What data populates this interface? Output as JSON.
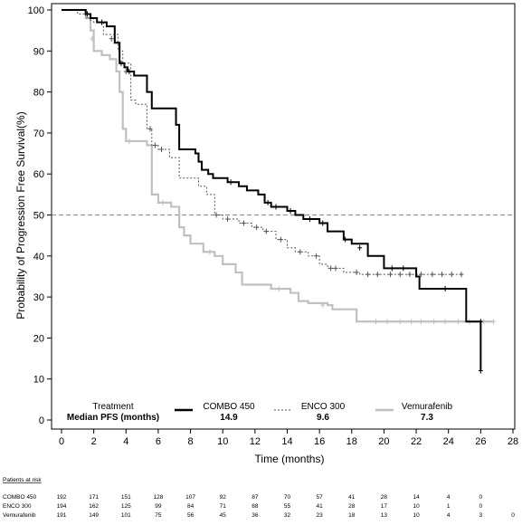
{
  "chart_data": {
    "type": "line",
    "ylabel": "Probability of Progression Free Survival(%)",
    "xlabel": "Time (months)",
    "xlim": [
      0,
      28
    ],
    "ylim": [
      0,
      100
    ],
    "x_ticks": [
      "0",
      "2",
      "4",
      "6",
      "8",
      "10",
      "12",
      "14",
      "16",
      "18",
      "20",
      "22",
      "24",
      "26",
      "28"
    ],
    "y_ticks": [
      "0",
      "10",
      "20",
      "30",
      "40",
      "50",
      "60",
      "70",
      "80",
      "90",
      "100"
    ],
    "reference_line": {
      "y": 50,
      "style": "dashed"
    },
    "legend": {
      "title": "Treatment",
      "subtitle": "Median PFS (months)",
      "entries": [
        {
          "name": "COMBO 450",
          "median": "14.9",
          "color": "#000000",
          "style": "solid-thick"
        },
        {
          "name": "ENCO 300",
          "median": "9.6",
          "color": "#555555",
          "style": "dotted"
        },
        {
          "name": "Vemurafenib",
          "median": "7.3",
          "color": "#c0c0c0",
          "style": "solid-thick"
        }
      ]
    },
    "series": [
      {
        "name": "COMBO 450",
        "color": "#000000",
        "points": [
          [
            0,
            100
          ],
          [
            1.5,
            99
          ],
          [
            1.8,
            98
          ],
          [
            2.2,
            97
          ],
          [
            2.8,
            96
          ],
          [
            3.3,
            92
          ],
          [
            3.6,
            87
          ],
          [
            3.9,
            86
          ],
          [
            4.1,
            85
          ],
          [
            4.5,
            84
          ],
          [
            5.3,
            80
          ],
          [
            5.6,
            76
          ],
          [
            6.8,
            76
          ],
          [
            7.1,
            72
          ],
          [
            7.3,
            66
          ],
          [
            8.3,
            65
          ],
          [
            8.5,
            63
          ],
          [
            8.7,
            61
          ],
          [
            9.1,
            60
          ],
          [
            9.4,
            59
          ],
          [
            10.3,
            58
          ],
          [
            11.0,
            57
          ],
          [
            11.5,
            56
          ],
          [
            12.2,
            55
          ],
          [
            12.6,
            53
          ],
          [
            13.0,
            52
          ],
          [
            14.0,
            51
          ],
          [
            14.5,
            50
          ],
          [
            15.0,
            49
          ],
          [
            16.0,
            48
          ],
          [
            16.5,
            46
          ],
          [
            17.5,
            44
          ],
          [
            18.0,
            43
          ],
          [
            19.0,
            40
          ],
          [
            20.0,
            37
          ],
          [
            21.5,
            37
          ],
          [
            22.0,
            35
          ],
          [
            22.2,
            32
          ],
          [
            23.5,
            32
          ],
          [
            25.0,
            32
          ],
          [
            25.1,
            24
          ],
          [
            26.0,
            24
          ],
          [
            26.0,
            12
          ]
        ],
        "censor_marks": [
          [
            1.6,
            99
          ],
          [
            2.5,
            97
          ],
          [
            3.7,
            87
          ],
          [
            4.2,
            85
          ],
          [
            10.5,
            58
          ],
          [
            12.8,
            53
          ],
          [
            13.3,
            52
          ],
          [
            14.2,
            51
          ],
          [
            15.4,
            49
          ],
          [
            16.2,
            48
          ],
          [
            17.6,
            44
          ],
          [
            18.5,
            42
          ],
          [
            20.5,
            37
          ],
          [
            21.2,
            37
          ],
          [
            23.8,
            32
          ],
          [
            26.0,
            24
          ],
          [
            26.0,
            12
          ]
        ]
      },
      {
        "name": "ENCO 300",
        "color": "#555555",
        "points": [
          [
            0,
            100
          ],
          [
            1.0,
            99
          ],
          [
            1.5,
            98
          ],
          [
            2.0,
            97
          ],
          [
            2.6,
            94
          ],
          [
            3.5,
            90
          ],
          [
            3.8,
            87
          ],
          [
            4.3,
            78
          ],
          [
            4.6,
            77
          ],
          [
            5.3,
            71
          ],
          [
            5.6,
            67
          ],
          [
            6.0,
            66
          ],
          [
            6.7,
            64
          ],
          [
            7.3,
            59
          ],
          [
            8.5,
            57
          ],
          [
            9.0,
            55
          ],
          [
            9.5,
            50
          ],
          [
            10.0,
            49
          ],
          [
            11.0,
            48
          ],
          [
            11.8,
            47
          ],
          [
            12.5,
            46
          ],
          [
            13.3,
            44
          ],
          [
            14.0,
            42
          ],
          [
            14.5,
            41
          ],
          [
            15.3,
            40
          ],
          [
            16.0,
            38
          ],
          [
            16.5,
            37
          ],
          [
            17.5,
            36
          ],
          [
            18.5,
            35.5
          ],
          [
            20.0,
            35.5
          ],
          [
            22.0,
            35.5
          ],
          [
            24.0,
            35.5
          ],
          [
            24.8,
            35.5
          ]
        ],
        "censor_marks": [
          [
            1.8,
            98
          ],
          [
            3.1,
            93
          ],
          [
            4.0,
            85
          ],
          [
            5.5,
            71
          ],
          [
            5.8,
            67
          ],
          [
            6.2,
            66
          ],
          [
            9.6,
            50
          ],
          [
            10.3,
            49
          ],
          [
            11.3,
            48
          ],
          [
            12.1,
            47
          ],
          [
            12.7,
            46
          ],
          [
            13.6,
            44
          ],
          [
            14.8,
            41
          ],
          [
            15.8,
            40
          ],
          [
            16.7,
            37
          ],
          [
            17.0,
            37
          ],
          [
            18.3,
            36
          ],
          [
            19.0,
            35.5
          ],
          [
            19.6,
            35.5
          ],
          [
            20.4,
            35.5
          ],
          [
            21.0,
            35.5
          ],
          [
            21.6,
            35.5
          ],
          [
            22.3,
            35.5
          ],
          [
            23.0,
            35.5
          ],
          [
            23.6,
            35.5
          ],
          [
            24.2,
            35.5
          ],
          [
            24.8,
            35.5
          ]
        ]
      },
      {
        "name": "Vemurafenib",
        "color": "#c0c0c0",
        "points": [
          [
            0,
            100
          ],
          [
            1.5,
            98
          ],
          [
            1.8,
            95
          ],
          [
            2.0,
            90
          ],
          [
            2.5,
            89
          ],
          [
            3.0,
            88
          ],
          [
            3.4,
            85
          ],
          [
            3.6,
            80
          ],
          [
            3.8,
            71
          ],
          [
            4.0,
            68
          ],
          [
            5.3,
            67
          ],
          [
            5.6,
            55
          ],
          [
            6.0,
            53
          ],
          [
            6.8,
            52
          ],
          [
            7.3,
            47
          ],
          [
            7.6,
            45
          ],
          [
            8.0,
            43
          ],
          [
            8.8,
            41
          ],
          [
            9.5,
            40
          ],
          [
            10.0,
            38
          ],
          [
            10.8,
            36
          ],
          [
            11.2,
            33
          ],
          [
            12.0,
            33
          ],
          [
            13.0,
            32
          ],
          [
            14.2,
            31
          ],
          [
            14.7,
            29
          ],
          [
            15.3,
            28.5
          ],
          [
            16.5,
            28
          ],
          [
            16.8,
            27
          ],
          [
            17.5,
            27
          ],
          [
            18.3,
            24
          ],
          [
            20.0,
            24
          ],
          [
            22.0,
            24
          ],
          [
            24.0,
            24
          ],
          [
            26.8,
            24
          ]
        ],
        "censor_marks": [
          [
            1.9,
            93
          ],
          [
            4.2,
            68
          ],
          [
            6.3,
            53
          ],
          [
            9.2,
            41
          ],
          [
            13.5,
            32
          ],
          [
            16.2,
            28
          ],
          [
            19.5,
            24
          ],
          [
            20.2,
            24
          ],
          [
            21.0,
            24
          ],
          [
            21.7,
            24
          ],
          [
            22.3,
            24
          ],
          [
            23.1,
            24
          ],
          [
            23.8,
            24
          ],
          [
            24.6,
            24
          ],
          [
            25.3,
            24
          ],
          [
            26.2,
            24
          ],
          [
            26.8,
            24
          ]
        ]
      }
    ]
  },
  "risk_table": {
    "title": "Patients at risk",
    "times": [
      0,
      2,
      4,
      6,
      8,
      10,
      12,
      14,
      16,
      18,
      20,
      22,
      24,
      26,
      28
    ],
    "rows": [
      {
        "label": "COMBO 450",
        "values": [
          "192",
          "171",
          "151",
          "128",
          "107",
          "92",
          "87",
          "70",
          "57",
          "41",
          "28",
          "14",
          "4",
          "0"
        ]
      },
      {
        "label": "ENCO 300",
        "values": [
          "194",
          "162",
          "125",
          "99",
          "84",
          "71",
          "68",
          "55",
          "41",
          "28",
          "17",
          "10",
          "1",
          "0"
        ]
      },
      {
        "label": "Vemurafenib",
        "values": [
          "191",
          "149",
          "101",
          "75",
          "56",
          "45",
          "36",
          "32",
          "23",
          "18",
          "13",
          "10",
          "4",
          "3",
          "0"
        ]
      }
    ]
  }
}
